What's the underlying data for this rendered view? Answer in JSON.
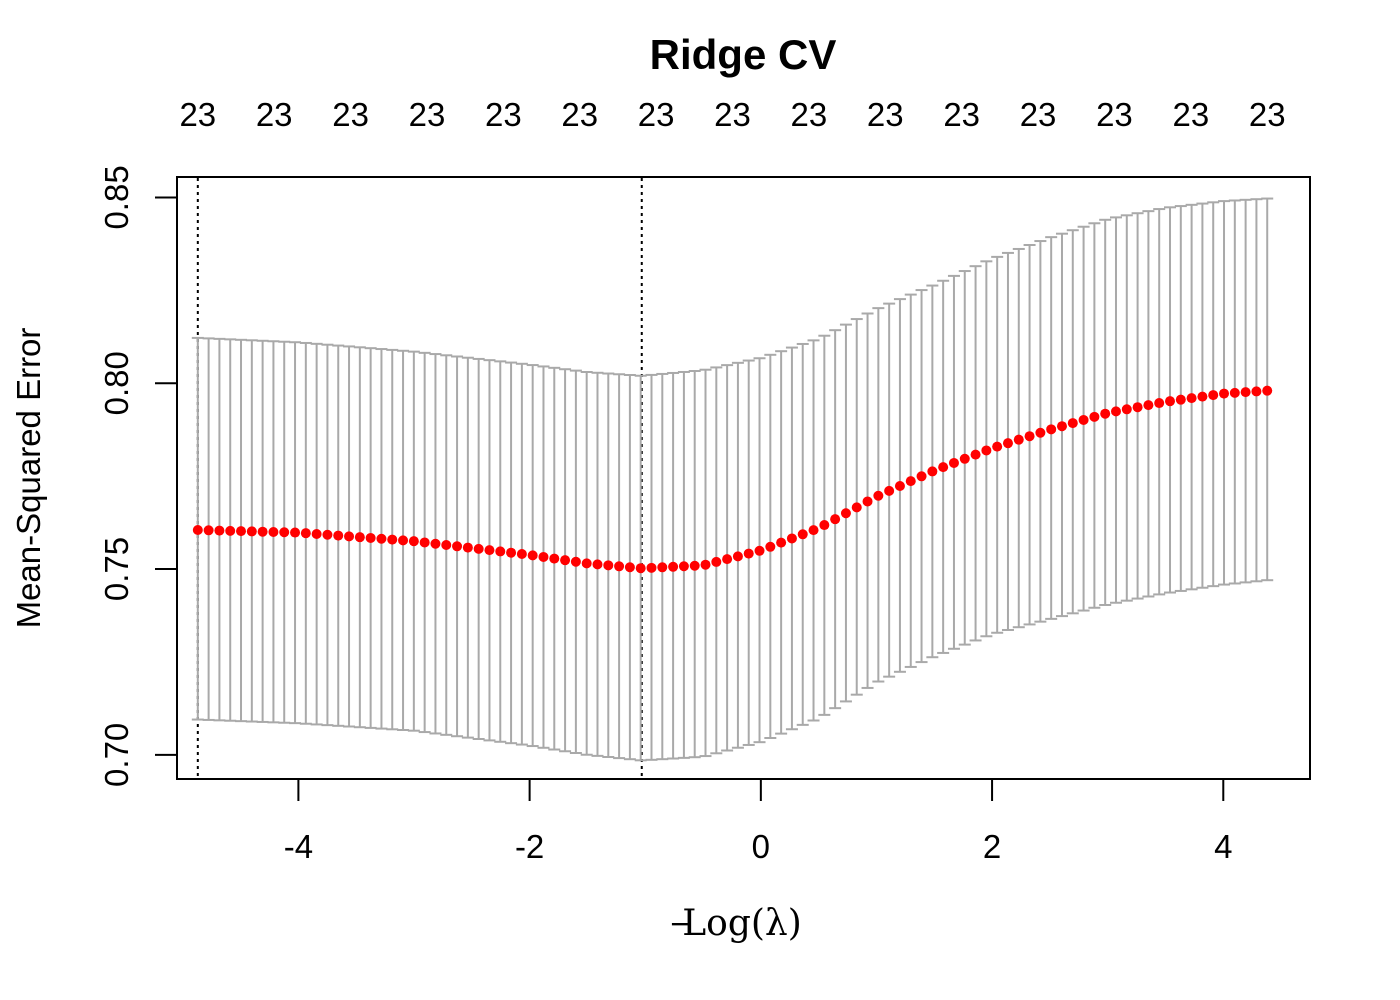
{
  "chart_data": {
    "type": "scatter",
    "title": "Ridge CV",
    "xlabel": "Log(λ)",
    "xlabel_prefix": "−",
    "ylabel": "Mean-Squared Error",
    "xlim": [
      -5.05,
      4.75
    ],
    "ylim": [
      0.6935,
      0.8555
    ],
    "x_ticks": [
      -4,
      -2,
      0,
      2,
      4
    ],
    "x_tick_labels": [
      "-4",
      "-2",
      "0",
      "2",
      "4"
    ],
    "y_ticks": [
      0.7,
      0.75,
      0.8,
      0.85
    ],
    "y_tick_labels": [
      "0.70",
      "0.75",
      "0.80",
      "0.85"
    ],
    "top_axis_labels": [
      "23",
      "23",
      "23",
      "23",
      "23",
      "23",
      "23",
      "23",
      "23",
      "23",
      "23",
      "23",
      "23",
      "23",
      "23"
    ],
    "top_axis_x_start": -4.87,
    "top_axis_x_end": 4.38,
    "vlines": [
      -4.87,
      -1.03
    ],
    "series_color": "#ff0000",
    "errorbar_color": "#a9a9a9",
    "grid": false,
    "legend": "none",
    "mse_anchors": {
      "x": [
        -4.87,
        -4.0,
        -3.0,
        -2.0,
        -1.5,
        -1.03,
        -0.5,
        0.0,
        0.5,
        1.0,
        1.5,
        2.0,
        2.5,
        3.0,
        3.5,
        4.0,
        4.38
      ],
      "mean": [
        0.7605,
        0.7598,
        0.7575,
        0.7538,
        0.7515,
        0.7502,
        0.751,
        0.755,
        0.761,
        0.7695,
        0.7765,
        0.7825,
        0.7875,
        0.792,
        0.795,
        0.7972,
        0.798
      ],
      "upper": [
        0.8122,
        0.811,
        0.8085,
        0.805,
        0.803,
        0.802,
        0.8035,
        0.8068,
        0.812,
        0.82,
        0.8265,
        0.8335,
        0.8392,
        0.8442,
        0.8472,
        0.849,
        0.8497
      ],
      "lower": [
        0.7095,
        0.7085,
        0.7065,
        0.7025,
        0.7,
        0.6985,
        0.6995,
        0.7035,
        0.7098,
        0.7195,
        0.7265,
        0.7325,
        0.7365,
        0.7405,
        0.7435,
        0.7458,
        0.747
      ]
    },
    "n_points": 100
  }
}
